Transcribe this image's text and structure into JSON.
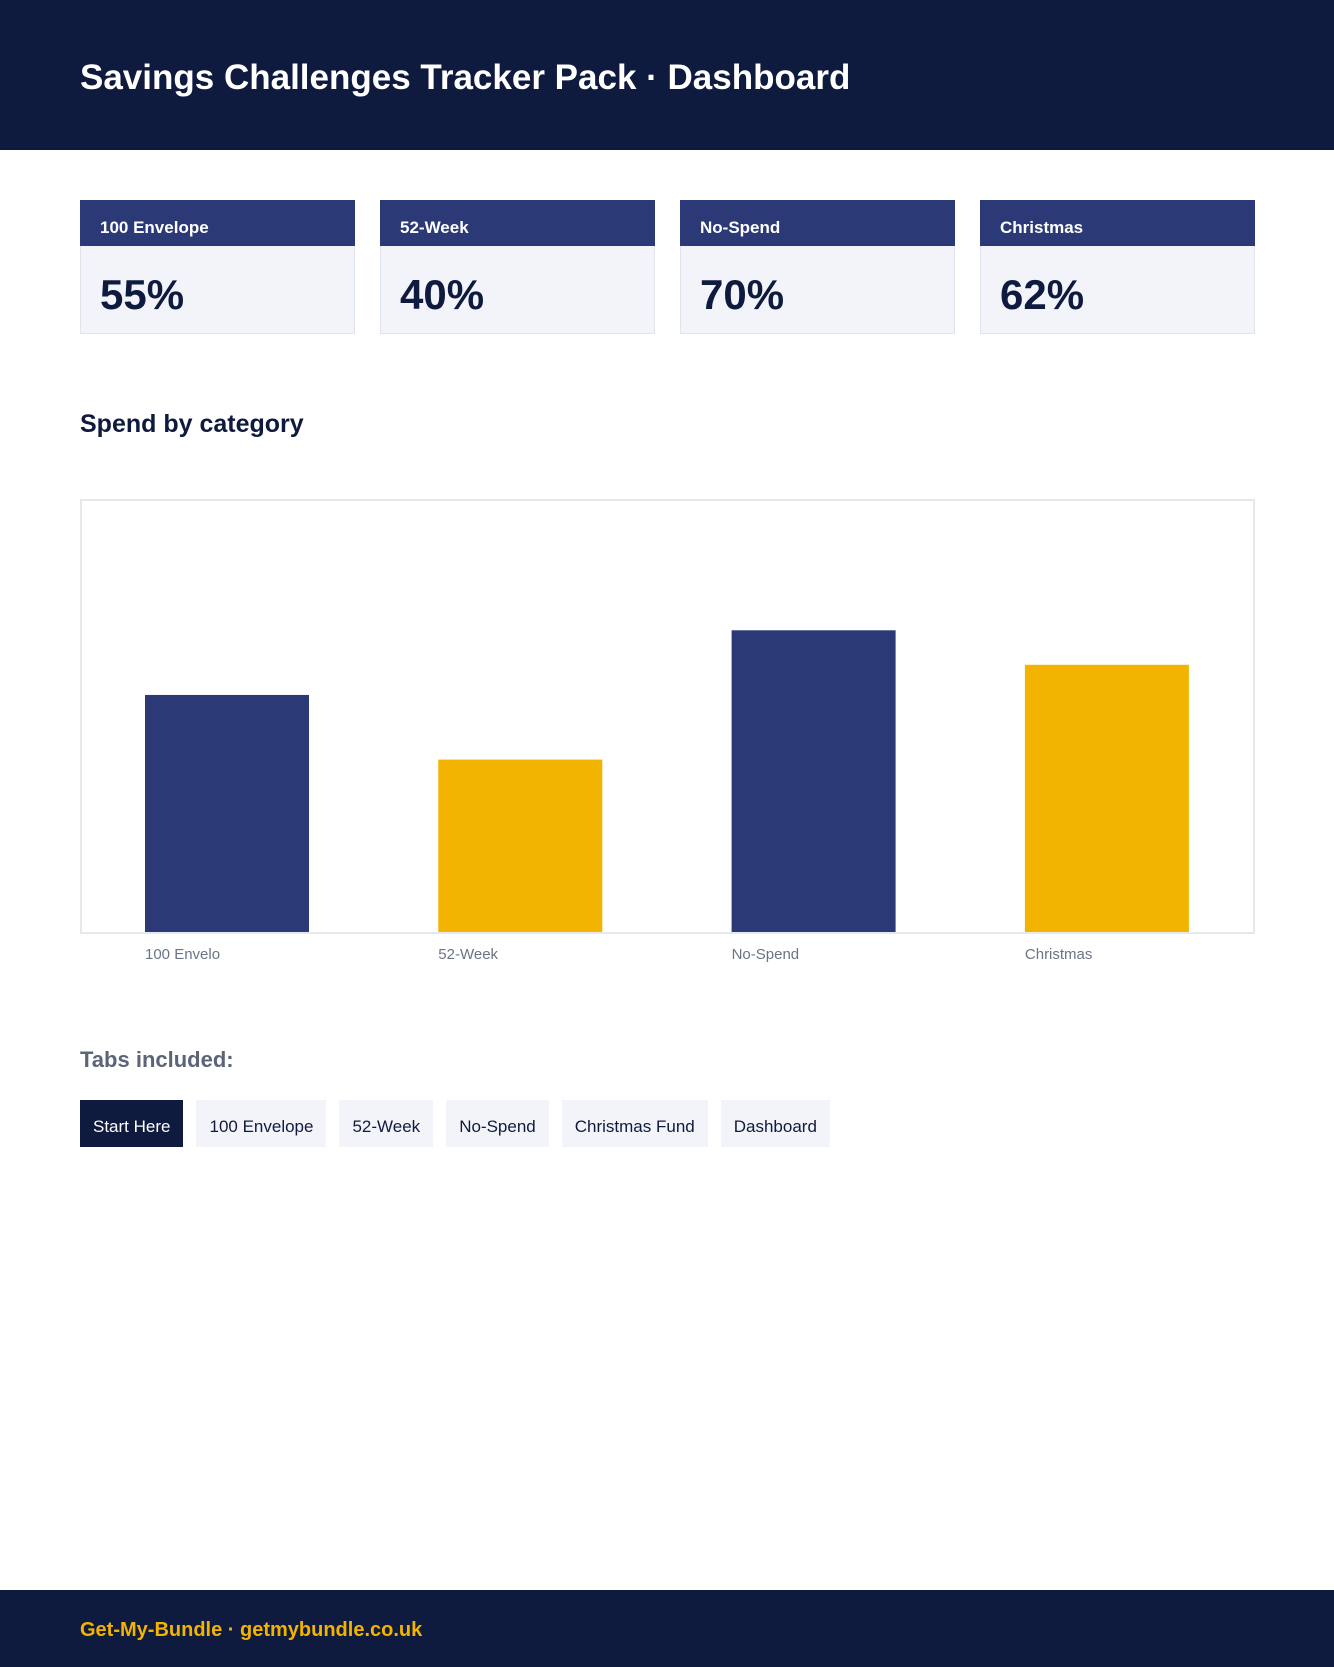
{
  "header": {
    "title": "Savings Challenges Tracker Pack · Dashboard"
  },
  "cards": [
    {
      "label": "100 Envelope",
      "value": "55%"
    },
    {
      "label": "52-Week",
      "value": "40%"
    },
    {
      "label": "No-Spend",
      "value": "70%"
    },
    {
      "label": "Christmas",
      "value": "62%"
    }
  ],
  "section": {
    "title": "Spend by category"
  },
  "colors": {
    "navy": "#2b3977",
    "gold": "#f2b400",
    "dark": "#0f1a3f"
  },
  "chart_data": {
    "type": "bar",
    "title": "Spend by category",
    "categories": [
      "100 Envelo",
      "52-Week",
      "No-Spend",
      "Christmas"
    ],
    "values": [
      55,
      40,
      70,
      62
    ],
    "bar_colors": [
      "#2b3977",
      "#f2b400",
      "#2b3977",
      "#f2b400"
    ],
    "ylim": [
      0,
      100
    ],
    "grid": false,
    "legend": "none"
  },
  "tabs": {
    "title": "Tabs included:",
    "items": [
      {
        "label": "Start Here",
        "active": true
      },
      {
        "label": "100 Envelope",
        "active": false
      },
      {
        "label": "52-Week",
        "active": false
      },
      {
        "label": "No-Spend",
        "active": false
      },
      {
        "label": "Christmas Fund",
        "active": false
      },
      {
        "label": "Dashboard",
        "active": false
      }
    ]
  },
  "footer": {
    "text": "Get-My-Bundle · getmybundle.co.uk"
  }
}
